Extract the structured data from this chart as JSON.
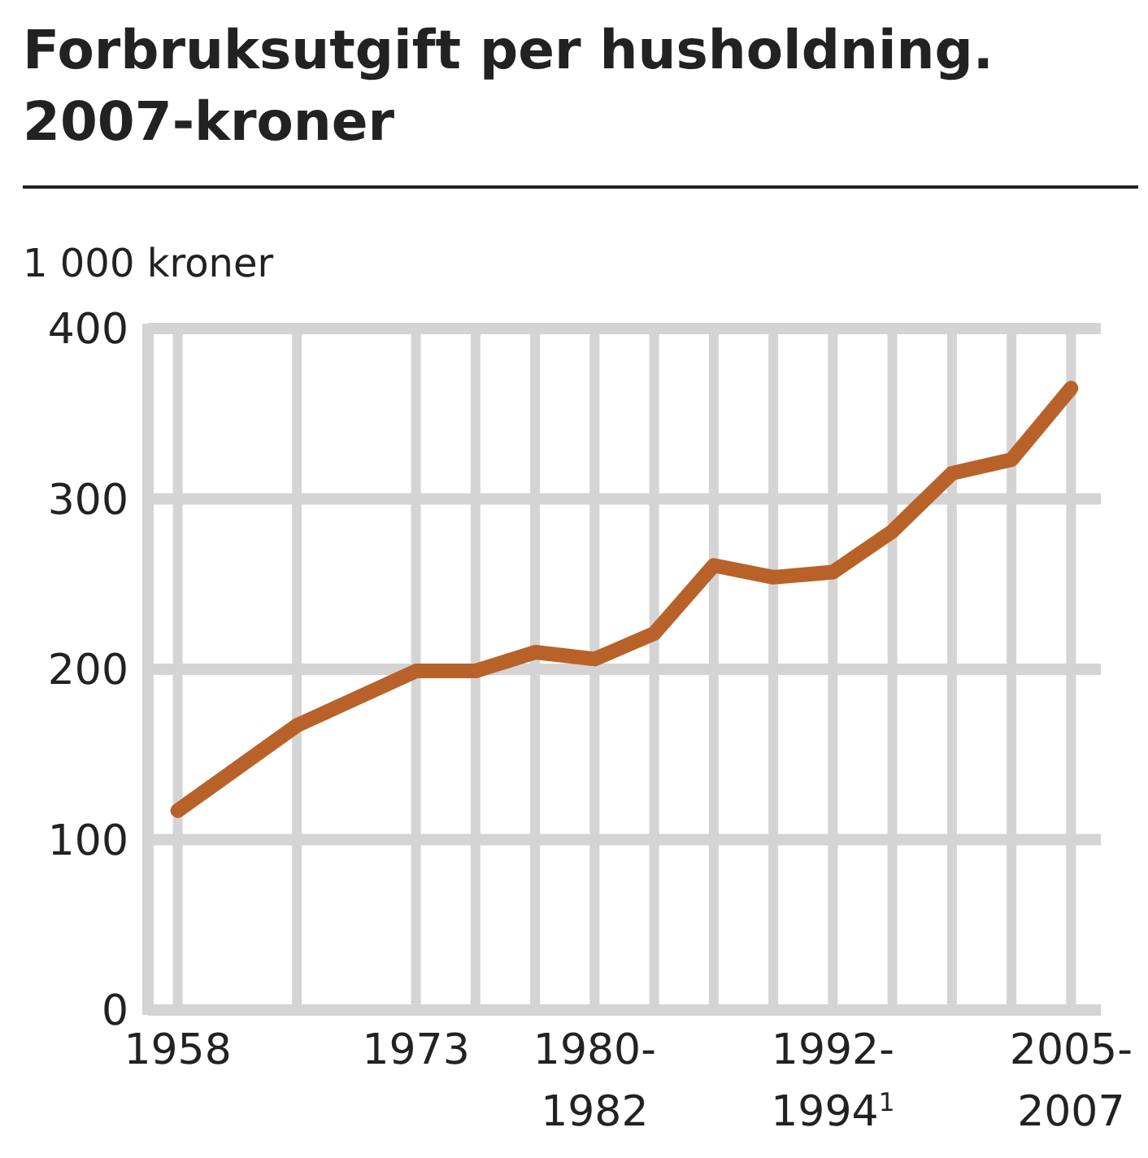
{
  "chart_data": {
    "type": "line",
    "title": "Forbruksutgift per husholdning.\n2007-kroner",
    "ylabel": "1 000 kroner",
    "categories": [
      "1958",
      null,
      null,
      null,
      "1973",
      null,
      null,
      "1980-\n1982",
      null,
      null,
      null,
      "1992-\n1994$^{1}$",
      null,
      null,
      null,
      "2005-\n2007"
    ],
    "series": [
      {
        "color": "#b8622a",
        "values": [
          117,
          null,
          167,
          null,
          199,
          199,
          210,
          206,
          221,
          261,
          254,
          257,
          281,
          315,
          323,
          365
        ]
      }
    ],
    "ylim": [
      0,
      400
    ],
    "yticks": [
      0,
      100,
      200,
      300,
      400
    ],
    "grid": true,
    "line_style": "solid",
    "marker": "none"
  }
}
